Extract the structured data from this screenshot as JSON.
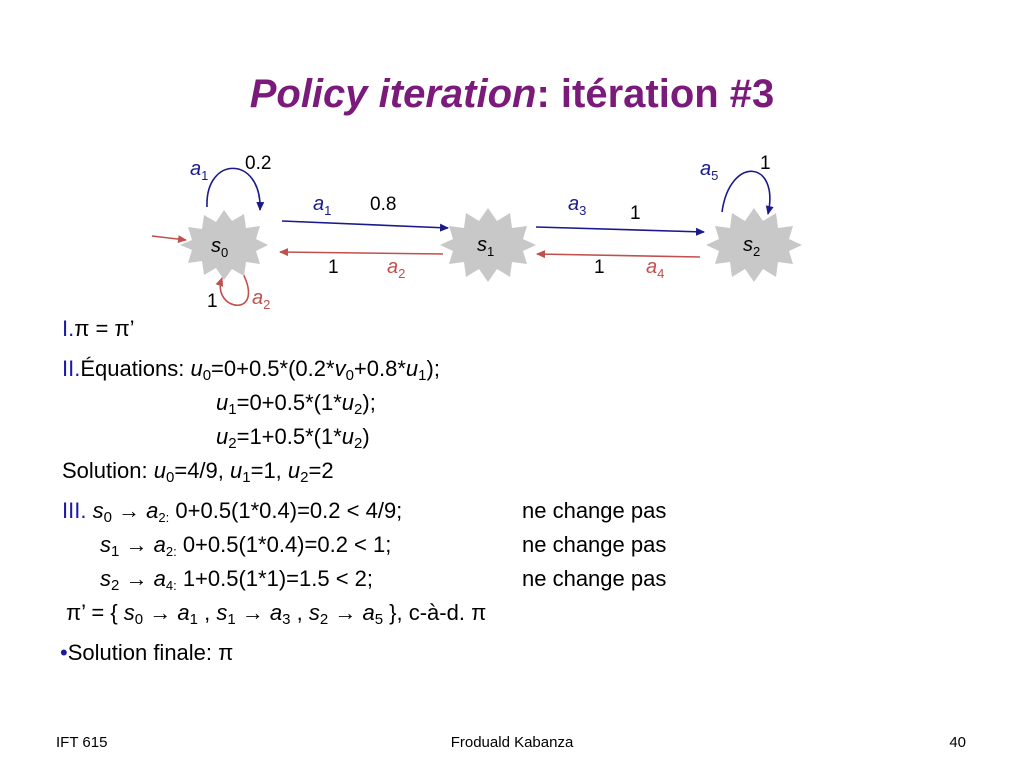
{
  "slide": {
    "title_italic": "Policy iteration",
    "title_rest": ": itération #3"
  },
  "diagram": {
    "states": [
      {
        "label": "s",
        "sub": "0"
      },
      {
        "label": "s",
        "sub": "1"
      },
      {
        "label": "s",
        "sub": "2"
      }
    ],
    "actions": {
      "a1_loop": {
        "label": "a",
        "sub": "1",
        "prob": "0.2"
      },
      "a1_edge": {
        "label": "a",
        "sub": "1",
        "prob": "0.8"
      },
      "a2_loop": {
        "label": "a",
        "sub": "2",
        "prob": "1"
      },
      "a2_edge": {
        "label": "a",
        "sub": "2",
        "prob": "1"
      },
      "a3_edge": {
        "label": "a",
        "sub": "3",
        "prob": "1"
      },
      "a4_edge": {
        "label": "a",
        "sub": "4",
        "prob": "1"
      },
      "a5_loop": {
        "label": "a",
        "sub": "5",
        "prob": "1"
      }
    },
    "colors": {
      "blue": "#1a1a8c",
      "red": "#c0504d",
      "state_fill": "#c8c8c8"
    }
  },
  "content": {
    "step1_num": "I.",
    "step1_text": "π = π’",
    "step2_num": "II.",
    "step2_label": "Équations:",
    "eq1": [
      "u",
      "0",
      "=0+0.5*(0.2*",
      "v",
      "0",
      "+0.8*",
      "u",
      "1",
      ");"
    ],
    "eq2": [
      "u",
      "1",
      "=0+0.5*(1*",
      "u",
      "2",
      ");"
    ],
    "eq3": [
      "u",
      "2",
      "=1+0.5*(1*",
      "u",
      "2",
      ")"
    ],
    "solution_label": "Solution:",
    "solution": [
      "u",
      "0",
      "=4/9, ",
      "u",
      "1",
      "=1, ",
      "u",
      "2",
      "=2"
    ],
    "step3_num": "III.",
    "checks": [
      {
        "s": "s",
        "ssub": "0",
        "arrow": "→",
        "a": "a",
        "asub": "2:",
        "expr": "0+0.5(1*0.4)=0.2 < 4/9;",
        "verdict": "ne change pas"
      },
      {
        "s": "s",
        "ssub": "1",
        "arrow": "→",
        "a": "a",
        "asub": "2:",
        "expr": "0+0.5(1*0.4)=0.2 < 1;",
        "verdict": "ne change pas"
      },
      {
        "s": "s",
        "ssub": "2",
        "arrow": "→",
        "a": "a",
        "asub": "4:",
        "expr": "1+0.5(1*1)=1.5 < 2;",
        "verdict": "ne change pas"
      }
    ],
    "policy_prefix": "π’ = { ",
    "policy": [
      {
        "s": "s",
        "ssub": "0",
        "a": "a",
        "asub": "1"
      },
      {
        "s": "s",
        "ssub": "1",
        "a": "a",
        "asub": "3"
      },
      {
        "s": "s",
        "ssub": "2",
        "a": "a",
        "asub": "5"
      }
    ],
    "policy_suffix": " }, c-à-d. π",
    "bullet": "•",
    "final": "Solution finale: π"
  },
  "footer": {
    "left": "IFT 615",
    "center": "Froduald Kabanza",
    "right": "40"
  }
}
